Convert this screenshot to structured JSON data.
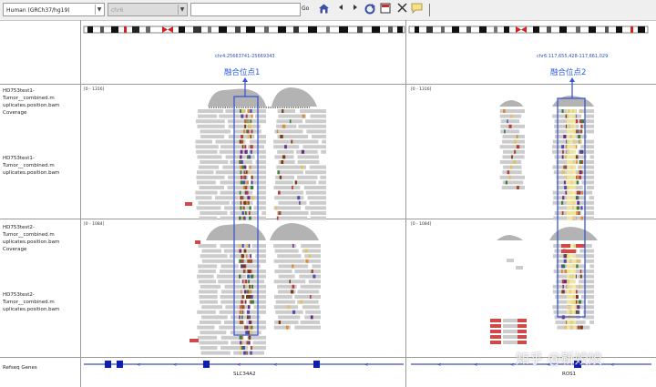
{
  "toolbar": {
    "genome": "Human (GRCh37/hg19)",
    "chromosome": "chr6",
    "locus": "",
    "go_label": "Go",
    "icons": [
      "home-icon",
      "back-icon",
      "forward-icon",
      "refresh-icon",
      "roi-icon",
      "resize-icon",
      "popup-text-icon",
      "divider-line"
    ]
  },
  "colors": {
    "highlight_box": "#3a56d4",
    "coverage": "#b3b3b3",
    "read": "#cccccc",
    "gene": "#0e1fb0",
    "centromere": "#d42020"
  },
  "left_panel": {
    "locus": "chr4:25663741-25669343",
    "fusion_label": "融合位点1",
    "gene": "SLC34A2",
    "tumor1_range": "[0 - 1316]",
    "tumor2_range": "[0 - 1084]"
  },
  "right_panel": {
    "locus": "chr6:117,655,428-117,661,029",
    "fusion_label": "融合位点2",
    "gene": "ROS1",
    "tumor1_range": "[0 - 1316]",
    "tumor2_range": "[0 - 1084]"
  },
  "tracks": {
    "t1_coverage": "HD753test1-Tumor__combined.m uplicates.position.bam Coverage",
    "t1_bam": "HD753test1-Tumor__combined.m uplicates.position.bam",
    "t2_coverage": "HD753test2-Tumor__combined.m uplicates.position.bam Coverage",
    "t2_bam": "HD753test2-Tumor__combined.m uplicates.position.bam",
    "refseq": "Refseq Genes"
  },
  "watermark": "知乎 @靳姣姣"
}
